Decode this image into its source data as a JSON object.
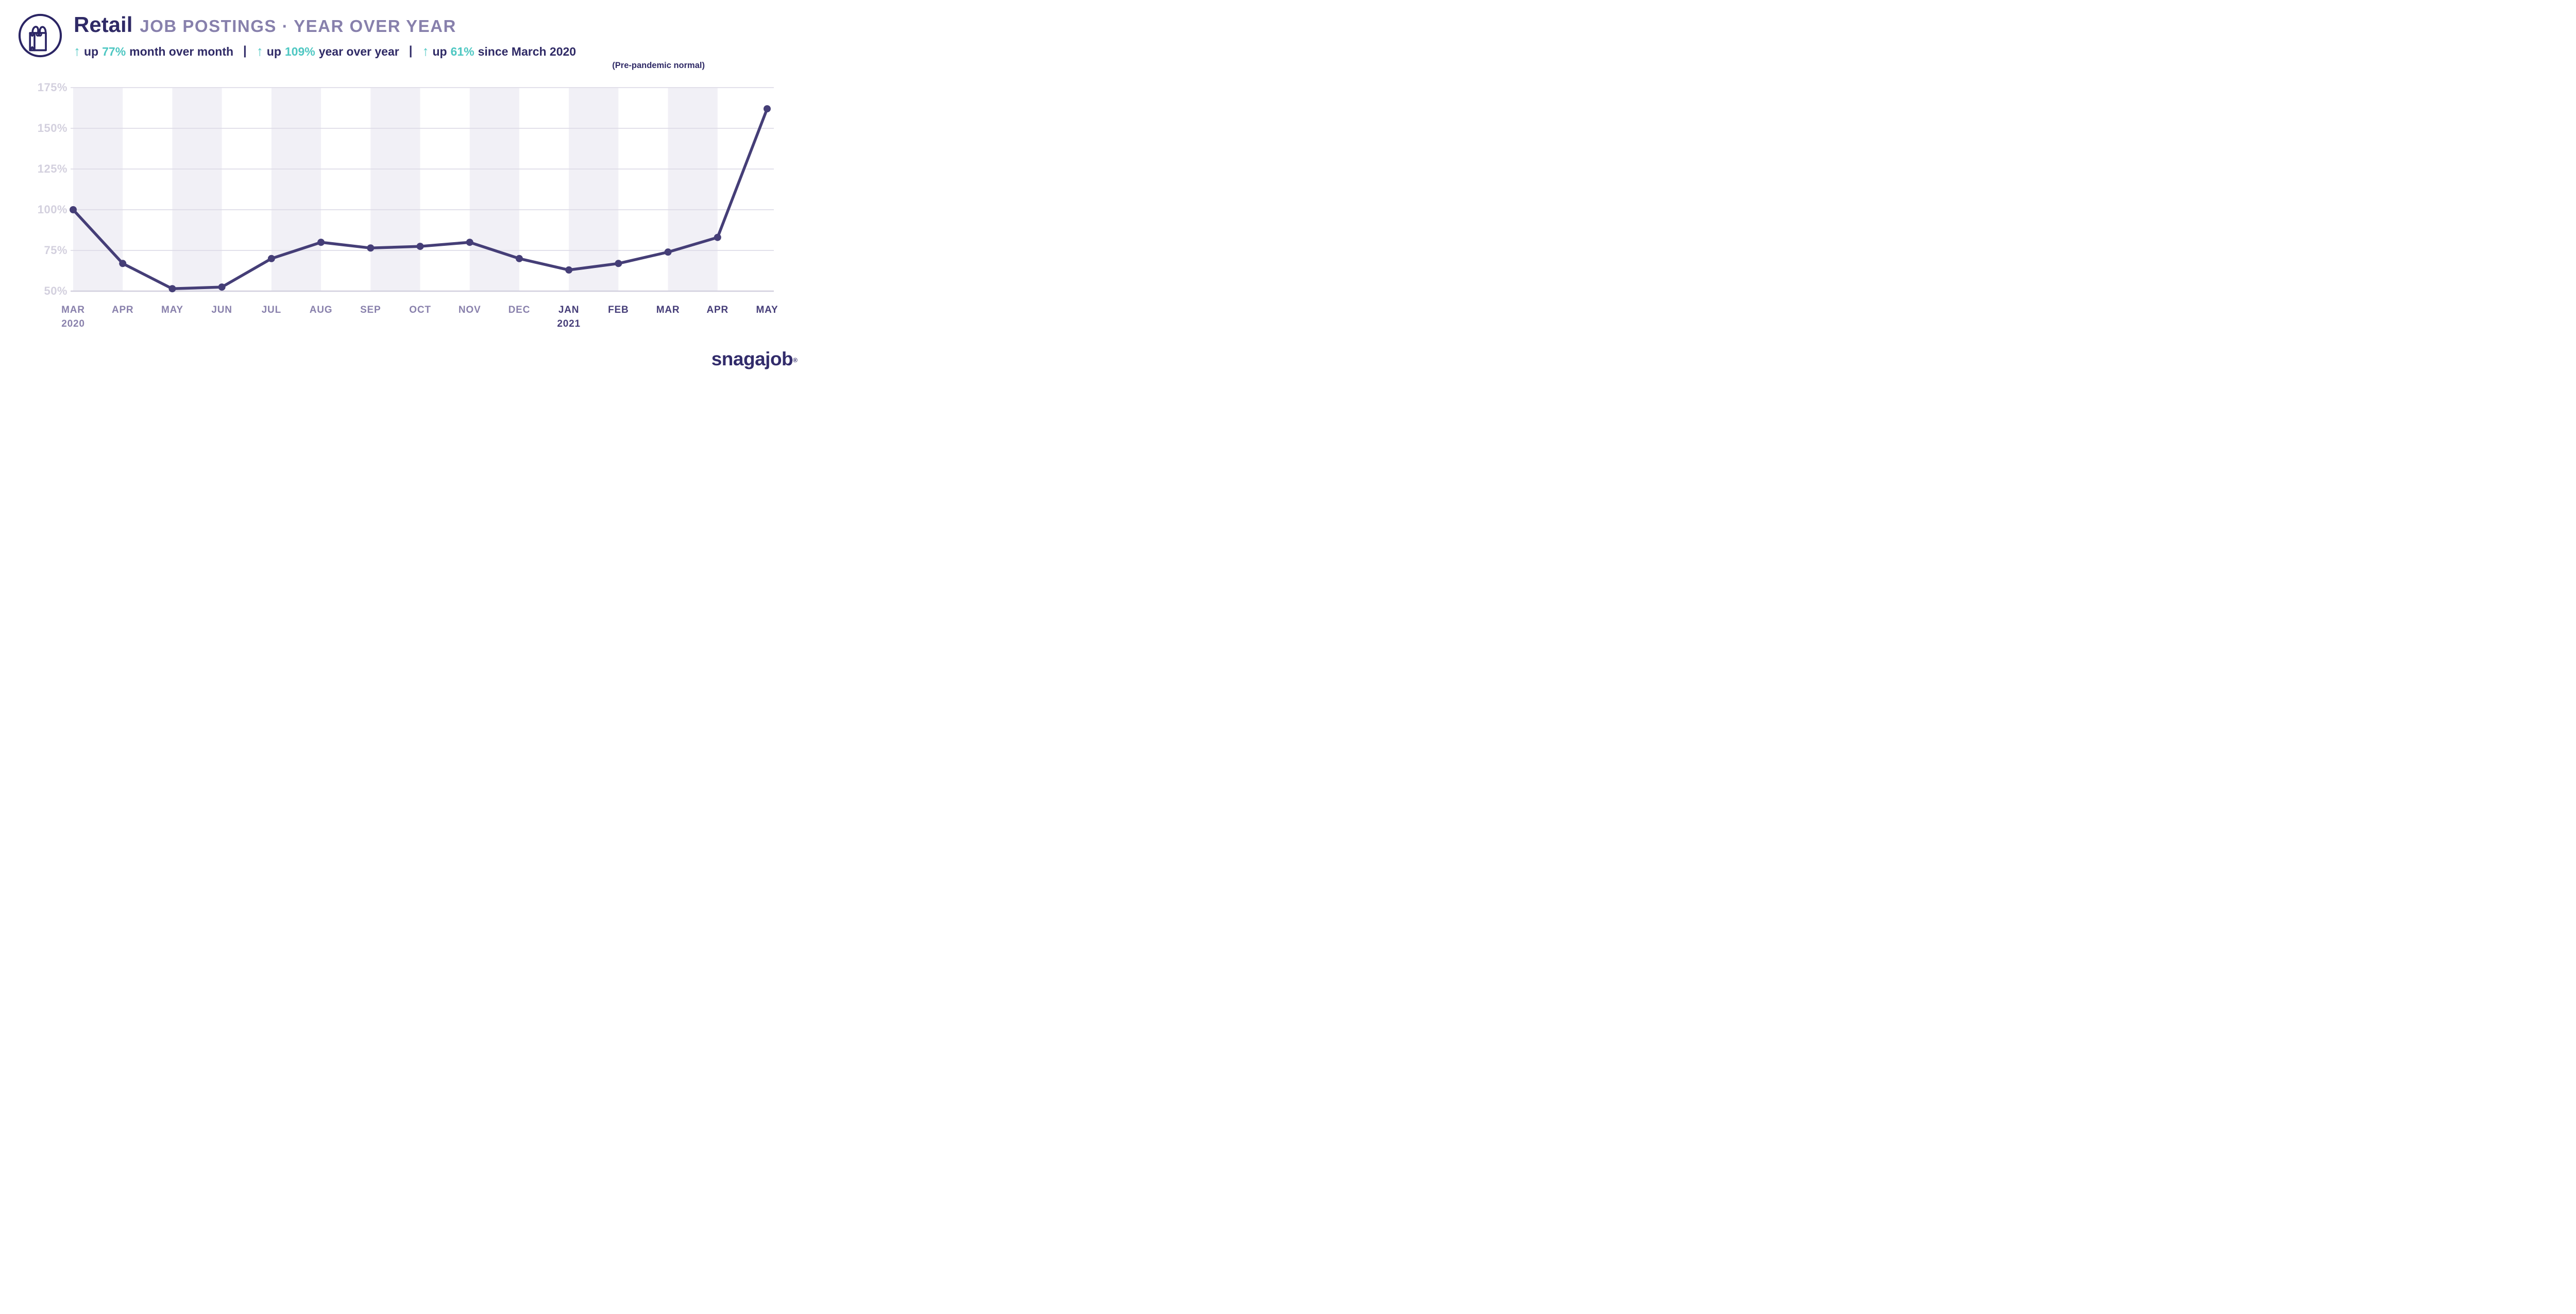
{
  "header": {
    "icon": "shopping-bag-icon",
    "title": "Retail",
    "subtitle": "JOB POSTINGS · YEAR OVER YEAR",
    "separator": "|",
    "stats": [
      {
        "arrow": "↑",
        "lead": "up",
        "value": "77%",
        "rest": "month over month"
      },
      {
        "arrow": "↑",
        "lead": "up",
        "value": "109%",
        "rest": "year over year"
      },
      {
        "arrow": "↑",
        "lead": "up",
        "value": "61%",
        "rest": "since March 2020"
      }
    ],
    "subnote": "(Pre-pandemic normal)"
  },
  "chart_data": {
    "type": "line",
    "title": "Retail JOB POSTINGS · YEAR OVER YEAR",
    "series_name": "Retail job postings, year over year",
    "x": [
      {
        "label": "MAR",
        "year": "2020"
      },
      {
        "label": "APR"
      },
      {
        "label": "MAY"
      },
      {
        "label": "JUN"
      },
      {
        "label": "JUL"
      },
      {
        "label": "AUG"
      },
      {
        "label": "SEP"
      },
      {
        "label": "OCT"
      },
      {
        "label": "NOV"
      },
      {
        "label": "DEC"
      },
      {
        "label": "JAN",
        "year": "2021"
      },
      {
        "label": "FEB"
      },
      {
        "label": "MAR"
      },
      {
        "label": "APR"
      },
      {
        "label": "MAY"
      }
    ],
    "values": [
      100,
      67,
      51.5,
      52.5,
      70,
      80,
      76.5,
      77.5,
      80,
      70,
      63,
      67,
      74,
      83,
      162
    ],
    "unit": "%",
    "ylim": [
      50,
      175
    ],
    "yticks": [
      175,
      150,
      125,
      100,
      75,
      50
    ],
    "ytick_suffix": "%",
    "grid": "horizontal gridlines at each 25% step",
    "column_bands": "alternating light bands between month positions, starting with first interval",
    "legend": "none"
  },
  "colors": {
    "navy_text": "#2F2A66",
    "teal_accent": "#4EC7C2",
    "muted_purple": "#8780AC",
    "line": "#453E77",
    "band": "#F1F0F6",
    "gridline": "#DEDCE7",
    "gridline_bottom": "#D2CFDE",
    "y_label": "#D3D0DE",
    "x_label_2020": "#8981AC",
    "x_label_2021": "#453D78",
    "logo": "#322C6B"
  },
  "footer": {
    "logo_text": "snagajob",
    "registered_mark": "®"
  }
}
